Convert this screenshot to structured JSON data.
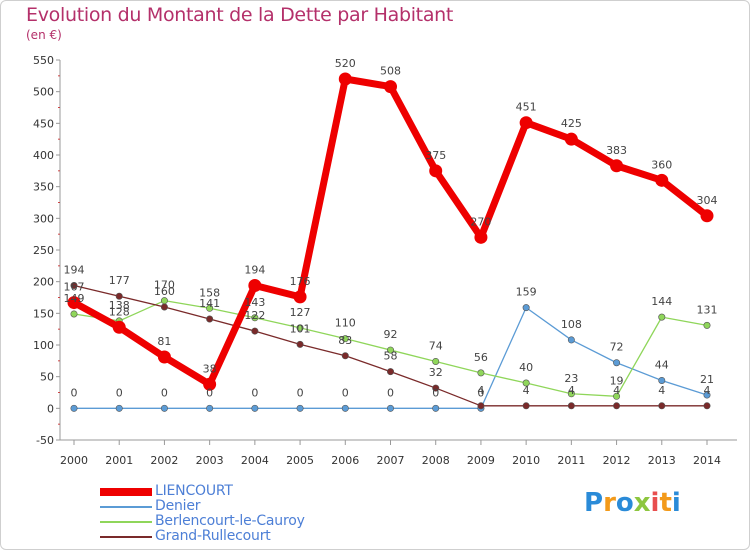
{
  "title": "Evolution du Montant de la Dette par Habitant",
  "subtitle": "(en €)",
  "brand": {
    "text": "Proxiti",
    "letters": [
      {
        "ch": "P",
        "color": "#2a8bd8"
      },
      {
        "ch": "r",
        "color": "#f39a1a"
      },
      {
        "ch": "o",
        "color": "#2a8bd8"
      },
      {
        "ch": "x",
        "color": "#8dc63f"
      },
      {
        "ch": "i",
        "color": "#e84e4e"
      },
      {
        "ch": "t",
        "color": "#f39a1a"
      },
      {
        "ch": "i",
        "color": "#2a8bd8"
      }
    ]
  },
  "chart_data": {
    "type": "line",
    "title": "Evolution du Montant de la Dette par Habitant",
    "ylabel": "(en €)",
    "xlabel": "",
    "x": [
      2000,
      2001,
      2002,
      2003,
      2004,
      2005,
      2006,
      2007,
      2008,
      2009,
      2010,
      2011,
      2012,
      2013,
      2014
    ],
    "ylim": [
      -50,
      550
    ],
    "yticks": [
      -50,
      0,
      50,
      100,
      150,
      200,
      250,
      300,
      350,
      400,
      450,
      500,
      550
    ],
    "grid": false,
    "legend_position": "bottom-left",
    "series": [
      {
        "name": "LIENCOURT",
        "color": "#ee0000",
        "emphasis": true,
        "values": [
          167,
          128,
          81,
          38,
          194,
          176,
          520,
          508,
          375,
          270,
          451,
          425,
          383,
          360,
          304
        ]
      },
      {
        "name": "Denier",
        "color": "#5b9bd5",
        "emphasis": false,
        "values": [
          0,
          0,
          0,
          0,
          0,
          0,
          0,
          0,
          0,
          0,
          159,
          108,
          72,
          44,
          21
        ]
      },
      {
        "name": "Berlencourt-le-Cauroy",
        "color": "#8fd65a",
        "emphasis": false,
        "values": [
          149,
          138,
          170,
          158,
          143,
          127,
          110,
          92,
          74,
          56,
          40,
          23,
          19,
          144,
          131
        ]
      },
      {
        "name": "Grand-Rullecourt",
        "color": "#7a2a2a",
        "emphasis": false,
        "values": [
          194,
          177,
          160,
          141,
          122,
          101,
          83,
          58,
          32,
          4,
          4,
          4,
          4,
          4,
          4
        ]
      }
    ]
  }
}
